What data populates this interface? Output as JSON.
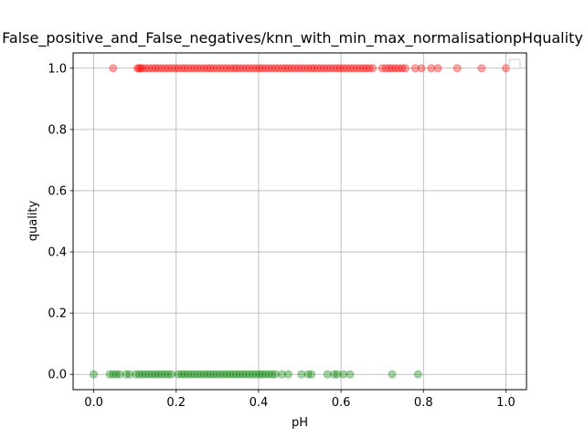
{
  "chart_data": {
    "type": "scatter",
    "title": "False_positive_and_False_negatives/knn_with_min_max_normalisationpHquality",
    "xlabel": "pH",
    "ylabel": "quality",
    "xlim": [
      -0.05,
      1.05
    ],
    "ylim": [
      -0.05,
      1.05
    ],
    "xticks": [
      "0.0",
      "0.2",
      "0.4",
      "0.6",
      "0.8",
      "1.0"
    ],
    "yticks": [
      "0.0",
      "0.2",
      "0.4",
      "0.6",
      "0.8",
      "1.0"
    ],
    "grid": true,
    "legend": "upper-right (empty)",
    "series": [
      {
        "color": "#ff0000",
        "alpha": 0.35,
        "y": 1.0,
        "x": [
          0.047,
          0.106,
          0.11,
          0.114,
          0.118,
          0.126,
          0.134,
          0.142,
          0.15,
          0.157,
          0.165,
          0.173,
          0.181,
          0.189,
          0.197,
          0.205,
          0.213,
          0.22,
          0.228,
          0.236,
          0.244,
          0.252,
          0.26,
          0.268,
          0.276,
          0.283,
          0.291,
          0.299,
          0.307,
          0.315,
          0.323,
          0.331,
          0.339,
          0.346,
          0.354,
          0.362,
          0.37,
          0.378,
          0.386,
          0.394,
          0.402,
          0.409,
          0.417,
          0.425,
          0.433,
          0.441,
          0.449,
          0.457,
          0.465,
          0.472,
          0.48,
          0.488,
          0.496,
          0.504,
          0.512,
          0.52,
          0.528,
          0.535,
          0.543,
          0.551,
          0.559,
          0.567,
          0.575,
          0.583,
          0.591,
          0.598,
          0.606,
          0.614,
          0.622,
          0.63,
          0.638,
          0.646,
          0.654,
          0.661,
          0.669,
          0.677,
          0.7,
          0.709,
          0.717,
          0.724,
          0.732,
          0.74,
          0.748,
          0.756,
          0.78,
          0.795,
          0.819,
          0.835,
          0.882,
          0.941,
          1.0
        ]
      },
      {
        "color": "#008000",
        "alpha": 0.35,
        "y": 0.0,
        "x": [
          0.0,
          0.039,
          0.047,
          0.055,
          0.063,
          0.079,
          0.087,
          0.102,
          0.11,
          0.118,
          0.126,
          0.134,
          0.142,
          0.15,
          0.157,
          0.165,
          0.173,
          0.181,
          0.189,
          0.205,
          0.213,
          0.22,
          0.228,
          0.236,
          0.244,
          0.252,
          0.26,
          0.268,
          0.276,
          0.283,
          0.291,
          0.299,
          0.307,
          0.315,
          0.323,
          0.331,
          0.339,
          0.346,
          0.354,
          0.362,
          0.37,
          0.378,
          0.386,
          0.394,
          0.402,
          0.409,
          0.417,
          0.425,
          0.433,
          0.441,
          0.457,
          0.472,
          0.504,
          0.52,
          0.528,
          0.567,
          0.583,
          0.591,
          0.606,
          0.622,
          0.724,
          0.787
        ]
      }
    ]
  }
}
